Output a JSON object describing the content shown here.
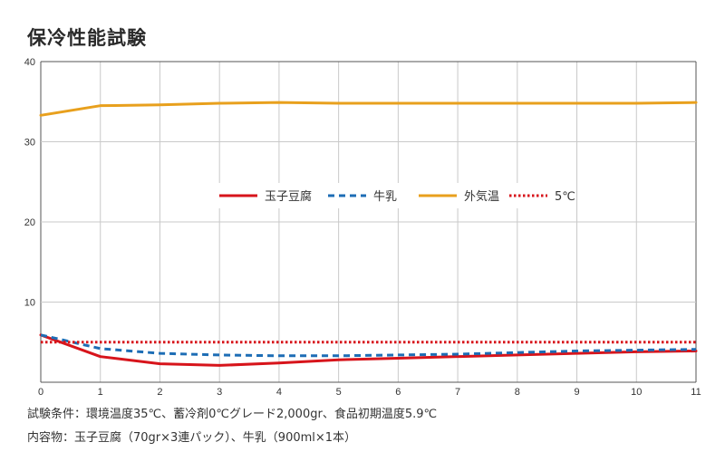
{
  "title": "保冷性能試験",
  "notes": {
    "conditions": "試験条件：環境温度35℃、蓄冷剤0℃グレード2,000gr、食品初期温度5.9℃",
    "contents": "内容物：玉子豆腐（70gr×3連パック）、牛乳（900ml×1本）"
  },
  "chart_data": {
    "type": "line",
    "title": "保冷性能試験",
    "xlabel": "",
    "ylabel": "",
    "xlim": [
      0,
      11
    ],
    "ylim": [
      0,
      40
    ],
    "x_ticks": [
      "0",
      "1",
      "2",
      "3",
      "4",
      "5",
      "6",
      "7",
      "8",
      "9",
      "10",
      "11"
    ],
    "y_ticks": [
      "10",
      "20",
      "30",
      "40"
    ],
    "grid": true,
    "legend_position": "center",
    "x": [
      0,
      1,
      2,
      3,
      4,
      5,
      6,
      7,
      8,
      9,
      10,
      11
    ],
    "series": [
      {
        "name": "玉子豆腐",
        "color": "#d7141b",
        "style": "solid",
        "values": [
          5.9,
          3.2,
          2.3,
          2.1,
          2.4,
          2.8,
          3.0,
          3.2,
          3.4,
          3.6,
          3.8,
          3.9
        ]
      },
      {
        "name": "牛乳",
        "color": "#1d6db5",
        "style": "dashed",
        "values": [
          5.9,
          4.2,
          3.6,
          3.4,
          3.3,
          3.3,
          3.4,
          3.5,
          3.7,
          3.9,
          4.0,
          4.1
        ]
      },
      {
        "name": "外気温",
        "color": "#e8a01d",
        "style": "solid",
        "values": [
          33.3,
          34.5,
          34.6,
          34.8,
          34.9,
          34.8,
          34.8,
          34.8,
          34.8,
          34.8,
          34.8,
          34.9
        ]
      },
      {
        "name": "5℃",
        "color": "#d7141b",
        "style": "dotted",
        "values": [
          5,
          5,
          5,
          5,
          5,
          5,
          5,
          5,
          5,
          5,
          5,
          5
        ]
      }
    ]
  }
}
